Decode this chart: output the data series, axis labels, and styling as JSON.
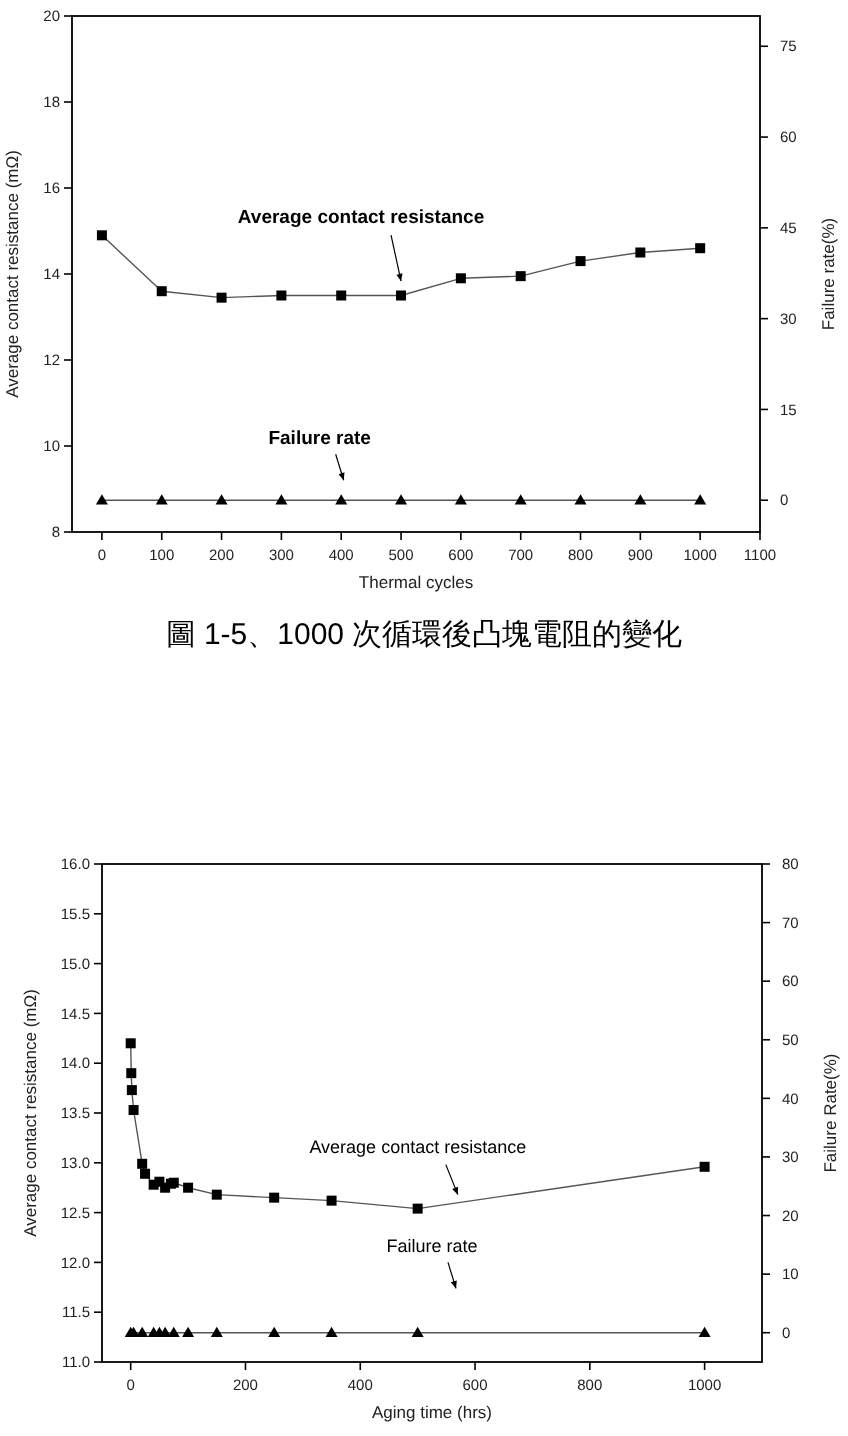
{
  "chart_data": [
    {
      "type": "line",
      "xlabel": "Thermal cycles",
      "ylabel": "Average contact resistance (mΩ)",
      "y2label": "Failure rate(%)",
      "xlim": [
        -50,
        1100
      ],
      "xticks": [
        0,
        100,
        200,
        300,
        400,
        500,
        600,
        700,
        800,
        900,
        1000,
        1100
      ],
      "ylim": [
        8,
        20
      ],
      "yticks": [
        8,
        10,
        12,
        14,
        16,
        18,
        20
      ],
      "y2lim": [
        -5.25,
        80
      ],
      "y2ticks": [
        0,
        15,
        30,
        45,
        60,
        75
      ],
      "grid": false,
      "line_style": "solid",
      "series": [
        {
          "color": "#000000",
          "marker": "square",
          "x": [
            0,
            100,
            200,
            300,
            400,
            500,
            600,
            700,
            800,
            900,
            1000
          ],
          "values": [
            14.9,
            13.6,
            13.45,
            13.5,
            13.5,
            13.5,
            13.9,
            13.95,
            14.3,
            14.5,
            14.6
          ]
        },
        {
          "color": "#000000",
          "marker": "triangle",
          "axis": "y2",
          "x": [
            0,
            100,
            200,
            300,
            400,
            500,
            600,
            700,
            800,
            900,
            1000
          ],
          "values": [
            0,
            0,
            0,
            0,
            0,
            0,
            0,
            0,
            0,
            0,
            0
          ]
        }
      ],
      "annotations": [
        {
          "text": "Average contact resistance",
          "x": 500,
          "y": 13.6
        },
        "Failure rate",
        "圖 1-5、1000 次循環後凸塊電阻的變化"
      ]
    },
    {
      "type": "line",
      "xlabel": "Aging time (hrs)",
      "ylabel": "Average contact resistance (mΩ)",
      "y2label": "Failure Rate(%)",
      "xlim": [
        -50,
        1100
      ],
      "xticks": [
        0,
        200,
        400,
        600,
        800,
        1000
      ],
      "ylim": [
        11,
        16
      ],
      "yticks": [
        {
          "value": 11,
          "label": "11.0"
        },
        11.5,
        {
          "value": 12,
          "label": "12.0"
        },
        12.5,
        {
          "value": 13,
          "label": "13.0"
        },
        13.5,
        {
          "value": 14,
          "label": "14.0"
        },
        14.5,
        {
          "value": 15,
          "label": "15.0"
        },
        15.5,
        {
          "value": 16,
          "label": "16.0"
        }
      ],
      "y2lim": [
        -5,
        80
      ],
      "y2ticks": [
        0,
        10,
        20,
        30,
        40,
        50,
        60,
        70,
        80
      ],
      "grid": false,
      "line_style": "solid",
      "series": [
        {
          "color": "#000000",
          "marker": "square",
          "x": [
            0,
            1,
            2,
            5,
            20,
            25,
            40,
            50,
            60,
            70,
            75,
            100,
            150,
            250,
            350,
            500,
            1000
          ],
          "values": [
            14.2,
            13.9,
            13.73,
            13.53,
            12.99,
            12.89,
            12.78,
            12.81,
            12.75,
            12.79,
            12.8,
            12.75,
            12.68,
            12.65,
            12.62,
            12.54,
            12.96
          ]
        },
        {
          "color": "#000000",
          "marker": "triangle",
          "axis": "y2",
          "x": [
            0,
            5,
            20,
            40,
            50,
            60,
            75,
            100,
            150,
            250,
            350,
            500,
            1000
          ],
          "values": [
            0,
            0,
            0,
            0,
            0,
            0,
            0,
            0,
            0,
            0,
            0,
            0,
            0
          ]
        }
      ],
      "annotations": [
        {
          "text": "Average contact resistance",
          "x": 570,
          "y": 12.58
        },
        "Failure rate"
      ]
    }
  ]
}
